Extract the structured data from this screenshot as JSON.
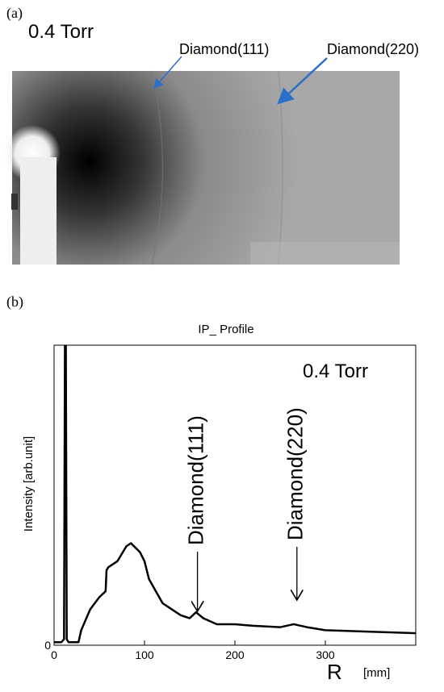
{
  "panel_a": {
    "label": "(a)",
    "pressure": "0.4 Torr",
    "annotations": [
      "Diamond(111)",
      "Diamond(220)"
    ]
  },
  "panel_b_label": "(b)",
  "chart_data": {
    "type": "line",
    "title": "IP_ Profile",
    "x_label": "R",
    "x_unit": "[mm]",
    "y_label": "Intensity [arb.unit]",
    "pressure": "0.4 Torr",
    "annotations": [
      {
        "text": "Diamond(111)",
        "x": 155
      },
      {
        "text": "Diamond(220)",
        "x": 265
      }
    ],
    "x": [
      0,
      8,
      11,
      12,
      13,
      14,
      16,
      20,
      27,
      30,
      40,
      50,
      57,
      58,
      60,
      70,
      80,
      85,
      95,
      100,
      105,
      120,
      140,
      150,
      157,
      165,
      180,
      200,
      220,
      250,
      265,
      280,
      300,
      350,
      400
    ],
    "series": [
      {
        "name": "IP_ Profile",
        "color": "#000000",
        "values": [
          1,
          1,
          2,
          100,
          100,
          2,
          1,
          1,
          1,
          5,
          12,
          16,
          18,
          25,
          26,
          28,
          33,
          34,
          31,
          28,
          22,
          14,
          10,
          9,
          11,
          9,
          7,
          7,
          6.5,
          6,
          7,
          6,
          5,
          4.5,
          4
        ]
      }
    ],
    "xlim": [
      0,
      400
    ],
    "xticks": [
      0,
      100,
      200,
      300
    ],
    "ylim": [
      0,
      100
    ],
    "yticks": [
      0
    ]
  }
}
